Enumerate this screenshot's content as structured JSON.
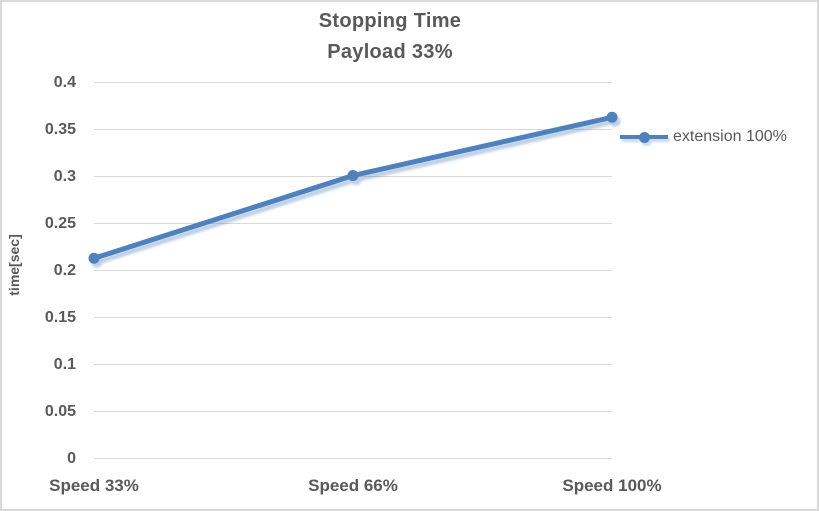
{
  "chart_data": {
    "type": "line",
    "title": "Stopping Time Payload 33%",
    "title_lines": [
      "Stopping Time",
      "Payload 33%"
    ],
    "xlabel": "",
    "ylabel": "time[sec]",
    "categories": [
      "Speed 33%",
      "Speed 66%",
      "Speed 100%"
    ],
    "series": [
      {
        "name": "extension 100%",
        "values": [
          0.213,
          0.301,
          0.363
        ]
      }
    ],
    "ylim": [
      0,
      0.4
    ],
    "ytick_step": 0.05,
    "ytick_labels": [
      "0",
      "0.05",
      "0.1",
      "0.15",
      "0.2",
      "0.25",
      "0.3",
      "0.35",
      "0.4"
    ],
    "grid": true,
    "legend_position": "right",
    "marker": "circle",
    "colors": {
      "series": "#4F81BD",
      "series_shadow": "#4F81BD",
      "gridline": "#D9D9D9",
      "axis_text": "#595959",
      "title_text": "#595959",
      "chart_border": "#D9D9D9",
      "background": "#FFFFFF"
    }
  }
}
